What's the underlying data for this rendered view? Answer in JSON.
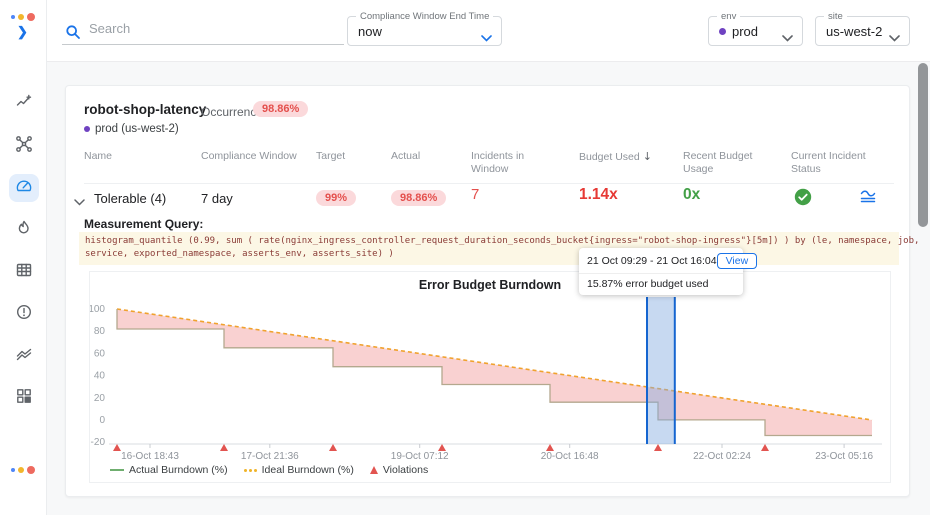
{
  "topbar": {
    "search": {
      "placeholder": "Search"
    },
    "compliance_window": {
      "label": "Compliance Window End Time",
      "value": "now"
    },
    "env": {
      "label": "env",
      "value": "prod",
      "dot_color": "#6f42c1"
    },
    "site": {
      "label": "site",
      "value": "us-west-2"
    }
  },
  "sidebar": {
    "icons": [
      "insights",
      "topology",
      "slo-dashboard",
      "incidents",
      "table",
      "alerts",
      "trends",
      "widgets"
    ],
    "active": "slo-dashboard"
  },
  "slo": {
    "title": "robot-shop-latency",
    "badge_label": "Occurrence",
    "badge_value": "98.86%",
    "scope": "prod (us-west-2)",
    "columns": [
      "Name",
      "Compliance Window",
      "Target",
      "Actual",
      "Incidents in Window",
      "Budget Used",
      "Recent Budget Usage",
      "Current Incident Status"
    ],
    "row": {
      "name": "Tolerable (4)",
      "compliance_window": "7 day",
      "target": "99%",
      "actual": "98.86%",
      "incidents_in_window": "7",
      "budget_used": "1.14x",
      "recent_budget_usage": "0x"
    },
    "status_colors": {
      "bad": "#e63935",
      "good": "#43a047",
      "pill_bg": "#fbd9db",
      "pill_text": "#e4504d"
    },
    "query_label": "Measurement Query:",
    "query_lines": [
      "histogram_quantile (0.99, sum ( rate(nginx_ingress_controller_request_duration_seconds_bucket{ingress=\"robot-shop-ingress\"}[5m]) ) by (le, namespace, job,",
      "service, exported_namespace, asserts_env, asserts_site) )"
    ]
  },
  "tooltip": {
    "range": "21 Oct 09:29 - 21 Oct 16:04",
    "view_label": "View",
    "detail": "15.87% error budget used"
  },
  "chart_data": {
    "type": "area",
    "title": "Error Budget Burndown",
    "ylim": [
      -20,
      100
    ],
    "yticks": [
      100,
      80,
      60,
      40,
      20,
      0,
      -20
    ],
    "xticks": [
      {
        "pos": 0.053,
        "label": "16-Oct 18:43"
      },
      {
        "pos": 0.208,
        "label": "17-Oct 21:36"
      },
      {
        "pos": 0.402,
        "label": "19-Oct 07:12"
      },
      {
        "pos": 0.596,
        "label": "20-Oct 16:48"
      },
      {
        "pos": 0.793,
        "label": "22-Oct 02:24"
      },
      {
        "pos": 0.951,
        "label": "23-Oct 05:16"
      }
    ],
    "series": [
      {
        "name": "Actual Burndown (%)",
        "type": "step",
        "color": "#b4a88e",
        "fill_between_color": "rgba(238,115,115,0.33)",
        "points": [
          [
            0.0104,
            100
          ],
          [
            0.0104,
            82
          ],
          [
            0.1488,
            82
          ],
          [
            0.1488,
            65
          ],
          [
            0.2898,
            65
          ],
          [
            0.2898,
            48
          ],
          [
            0.4308,
            48
          ],
          [
            0.4308,
            32
          ],
          [
            0.5705,
            32
          ],
          [
            0.5705,
            16
          ],
          [
            0.7102,
            16
          ],
          [
            0.7102,
            0.13
          ],
          [
            0.8487,
            0.13
          ],
          [
            0.8487,
            -14
          ],
          [
            0.987,
            -14
          ]
        ]
      },
      {
        "name": "Ideal Burndown (%)",
        "type": "line",
        "style": "dashed",
        "color": "#f0a22e",
        "points": [
          [
            0.0104,
            100
          ],
          [
            0.987,
            0
          ]
        ]
      }
    ],
    "violations": {
      "label": "Violations",
      "color": "#e25450",
      "positions": [
        0.0104,
        0.1488,
        0.2898,
        0.4308,
        0.5705,
        0.7102,
        0.8487
      ]
    },
    "selection_band": {
      "from": 0.696,
      "to": 0.732,
      "fill": "rgba(130,170,225,0.45)",
      "border": "#1565d0"
    },
    "legend": [
      {
        "label": "Actual Burndown (%)",
        "marker": "line",
        "color": "#6fae6f"
      },
      {
        "label": "Ideal Burndown (%)",
        "marker": "dots",
        "color": "#f0b429"
      },
      {
        "label": "Violations",
        "marker": "triangle",
        "color": "#e25450"
      }
    ]
  }
}
